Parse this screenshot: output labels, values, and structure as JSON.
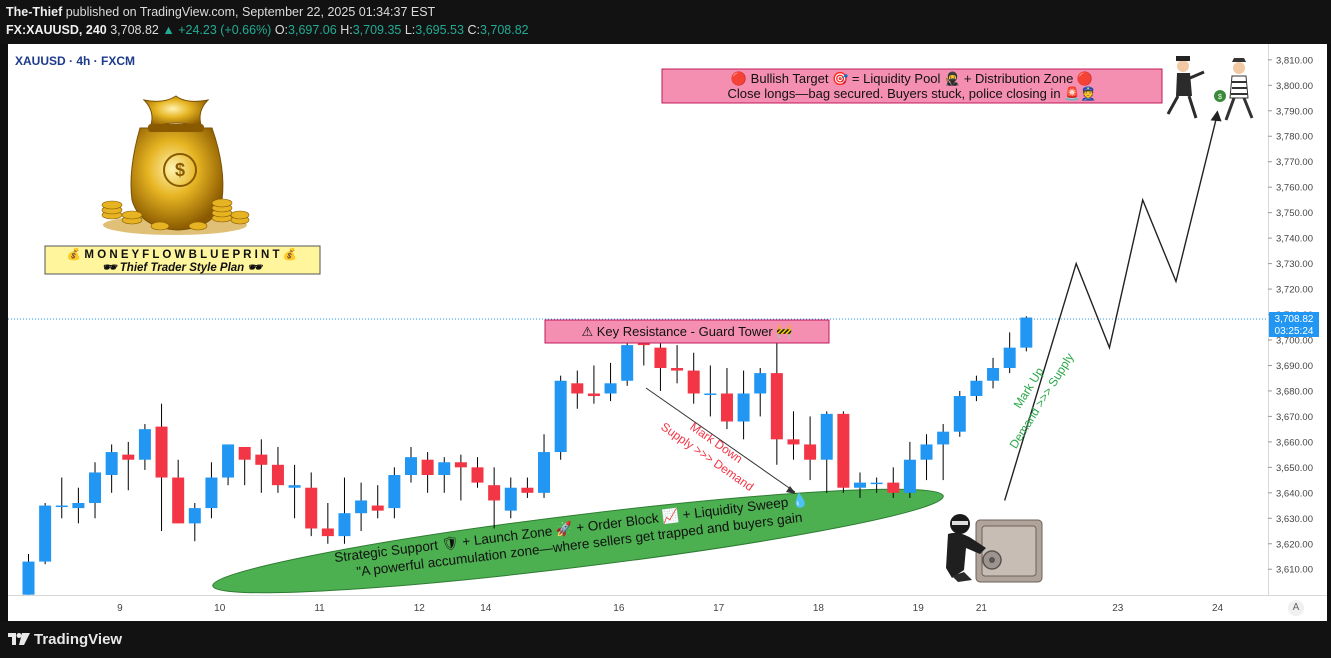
{
  "header": {
    "publisher": "The-Thief",
    "published_text": " published on TradingView.com, September 22, 2025 01:34:37 EST",
    "symbol": "FX:XAUUSD, 240",
    "last": "3,708.82",
    "change": "▲ +24.23 (+0.66%)",
    "o_label": "O:",
    "o_value": "3,697.06",
    "h_label": "H:",
    "h_value": "3,709.35",
    "l_label": "L:",
    "l_value": "3,695.53",
    "c_label": "C:",
    "c_value": "3,708.82"
  },
  "chart_title": "XAUUSD · 4h · FXCM",
  "price_tag": {
    "price": "3,708.82",
    "countdown": "03:25:24"
  },
  "colors": {
    "up": "#2196f3",
    "down": "#f23645",
    "zone": "#4caf50",
    "pink_box": "#f48fb1",
    "blueprint_box": "#fff59d",
    "mark_down": "#f23645",
    "mark_up": "#2ba84a"
  },
  "annotations": {
    "blueprint_line1": "💰 M O N E Y  F L O W  B L U E P R I N T 💰",
    "blueprint_line2": "🕶 Thief Trader Style Plan 🕶",
    "target_line1": "🔴 Bullish Target 🎯 = Liquidity Pool 🥷 + Distribution Zone 🔴",
    "target_line2": "Close longs—bag secured. Buyers stuck, police closing in 🚨👮",
    "resistance": "⚠ Key Resistance - Guard Tower 🚧",
    "mark_down_1": "Mark Down",
    "mark_down_2": "Supply >>> Demand",
    "mark_up_1": "Mark Up",
    "mark_up_2": "Demand >>> Supply",
    "support_line1": "Strategic Support 🛡 + Launch Zone 🚀 + Order Block 📈 + Liquidity Sweep 💧",
    "support_line2": "\"A powerful accumulation zone—where sellers get trapped and buyers gain"
  },
  "footer": {
    "brand": "TradingView"
  },
  "axis_auto": "A",
  "chart_data": {
    "type": "candlestick",
    "ylim": [
      3600,
      3815
    ],
    "yticks": [
      3610,
      3620,
      3630,
      3640,
      3650,
      3660,
      3670,
      3680,
      3690,
      3700,
      3710,
      3720,
      3730,
      3740,
      3750,
      3760,
      3770,
      3780,
      3790,
      3800,
      3810
    ],
    "xticks": [
      {
        "label": "9",
        "index": 5.5
      },
      {
        "label": "10",
        "index": 11.5
      },
      {
        "label": "11",
        "index": 17.5
      },
      {
        "label": "12",
        "index": 23.5
      },
      {
        "label": "14",
        "index": 27.5
      },
      {
        "label": "16",
        "index": 35.5
      },
      {
        "label": "17",
        "index": 41.5
      },
      {
        "label": "18",
        "index": 47.5
      },
      {
        "label": "19",
        "index": 53.5
      },
      {
        "label": "21",
        "index": 57.3
      },
      {
        "label": "23",
        "index": 65.5
      },
      {
        "label": "24",
        "index": 71.5
      }
    ],
    "last_price": 3708.82,
    "candles": [
      {
        "o": 3600,
        "h": 3616,
        "l": 3600,
        "c": 3613
      },
      {
        "o": 3613,
        "h": 3636,
        "l": 3612,
        "c": 3635
      },
      {
        "o": 3635,
        "h": 3646,
        "l": 3630,
        "c": 3635
      },
      {
        "o": 3634,
        "h": 3642,
        "l": 3628,
        "c": 3636
      },
      {
        "o": 3636,
        "h": 3652,
        "l": 3630,
        "c": 3648
      },
      {
        "o": 3647,
        "h": 3659,
        "l": 3640,
        "c": 3656
      },
      {
        "o": 3655,
        "h": 3660,
        "l": 3641,
        "c": 3653
      },
      {
        "o": 3653,
        "h": 3667,
        "l": 3649,
        "c": 3665
      },
      {
        "o": 3666,
        "h": 3675,
        "l": 3625,
        "c": 3646
      },
      {
        "o": 3646,
        "h": 3653,
        "l": 3628,
        "c": 3628
      },
      {
        "o": 3628,
        "h": 3636,
        "l": 3621,
        "c": 3634
      },
      {
        "o": 3634,
        "h": 3652,
        "l": 3630,
        "c": 3646
      },
      {
        "o": 3646,
        "h": 3658,
        "l": 3643,
        "c": 3659
      },
      {
        "o": 3658,
        "h": 3658,
        "l": 3643,
        "c": 3653
      },
      {
        "o": 3655,
        "h": 3661,
        "l": 3640,
        "c": 3651
      },
      {
        "o": 3651,
        "h": 3658,
        "l": 3640,
        "c": 3643
      },
      {
        "o": 3642,
        "h": 3651,
        "l": 3630,
        "c": 3643
      },
      {
        "o": 3642,
        "h": 3648,
        "l": 3623,
        "c": 3626
      },
      {
        "o": 3626,
        "h": 3636,
        "l": 3620,
        "c": 3623
      },
      {
        "o": 3623,
        "h": 3646,
        "l": 3620,
        "c": 3632
      },
      {
        "o": 3632,
        "h": 3644,
        "l": 3625,
        "c": 3637
      },
      {
        "o": 3635,
        "h": 3643,
        "l": 3630,
        "c": 3633
      },
      {
        "o": 3634,
        "h": 3650,
        "l": 3630,
        "c": 3647
      },
      {
        "o": 3647,
        "h": 3658,
        "l": 3644,
        "c": 3654
      },
      {
        "o": 3653,
        "h": 3656,
        "l": 3640,
        "c": 3647
      },
      {
        "o": 3647,
        "h": 3654,
        "l": 3640,
        "c": 3652
      },
      {
        "o": 3652,
        "h": 3655,
        "l": 3637,
        "c": 3650
      },
      {
        "o": 3650,
        "h": 3654,
        "l": 3642,
        "c": 3644
      },
      {
        "o": 3643,
        "h": 3650,
        "l": 3626,
        "c": 3637
      },
      {
        "o": 3633,
        "h": 3646,
        "l": 3630,
        "c": 3642
      },
      {
        "o": 3642,
        "h": 3646,
        "l": 3638,
        "c": 3640
      },
      {
        "o": 3640,
        "h": 3663,
        "l": 3638,
        "c": 3656
      },
      {
        "o": 3656,
        "h": 3686,
        "l": 3653,
        "c": 3684
      },
      {
        "o": 3683,
        "h": 3688,
        "l": 3673,
        "c": 3679
      },
      {
        "o": 3679,
        "h": 3690,
        "l": 3675,
        "c": 3678
      },
      {
        "o": 3679,
        "h": 3691,
        "l": 3676,
        "c": 3683
      },
      {
        "o": 3684,
        "h": 3700,
        "l": 3682,
        "c": 3698
      },
      {
        "o": 3700,
        "h": 3703,
        "l": 3690,
        "c": 3698
      },
      {
        "o": 3697,
        "h": 3703,
        "l": 3680,
        "c": 3689
      },
      {
        "o": 3689,
        "h": 3698,
        "l": 3683,
        "c": 3688
      },
      {
        "o": 3688,
        "h": 3695,
        "l": 3675,
        "c": 3679
      },
      {
        "o": 3679,
        "h": 3690,
        "l": 3670,
        "c": 3679
      },
      {
        "o": 3679,
        "h": 3689,
        "l": 3665,
        "c": 3668
      },
      {
        "o": 3668,
        "h": 3688,
        "l": 3661,
        "c": 3679
      },
      {
        "o": 3679,
        "h": 3689,
        "l": 3670,
        "c": 3687
      },
      {
        "o": 3687,
        "h": 3707,
        "l": 3651,
        "c": 3661
      },
      {
        "o": 3661,
        "h": 3672,
        "l": 3653,
        "c": 3659
      },
      {
        "o": 3659,
        "h": 3670,
        "l": 3645,
        "c": 3653
      },
      {
        "o": 3653,
        "h": 3672,
        "l": 3640,
        "c": 3671
      },
      {
        "o": 3671,
        "h": 3672,
        "l": 3640,
        "c": 3642
      },
      {
        "o": 3642,
        "h": 3648,
        "l": 3638,
        "c": 3644
      },
      {
        "o": 3644,
        "h": 3646,
        "l": 3640,
        "c": 3644
      },
      {
        "o": 3644,
        "h": 3650,
        "l": 3638,
        "c": 3640
      },
      {
        "o": 3640,
        "h": 3660,
        "l": 3638,
        "c": 3653
      },
      {
        "o": 3653,
        "h": 3663,
        "l": 3645,
        "c": 3659
      },
      {
        "o": 3659,
        "h": 3667,
        "l": 3645,
        "c": 3664
      },
      {
        "o": 3664,
        "h": 3680,
        "l": 3662,
        "c": 3678
      },
      {
        "o": 3678,
        "h": 3686,
        "l": 3676,
        "c": 3684
      },
      {
        "o": 3684,
        "h": 3693,
        "l": 3681,
        "c": 3689
      },
      {
        "o": 3689,
        "h": 3703,
        "l": 3687,
        "c": 3697
      },
      {
        "o": 3697,
        "h": 3709.35,
        "l": 3695.53,
        "c": 3708.82
      }
    ],
    "projection": [
      {
        "index": 58.7,
        "price": 3637
      },
      {
        "index": 63.0,
        "price": 3730
      },
      {
        "index": 65.0,
        "price": 3697
      },
      {
        "index": 67.0,
        "price": 3755
      },
      {
        "index": 69.0,
        "price": 3723
      },
      {
        "index": 71.5,
        "price": 3789
      }
    ]
  }
}
